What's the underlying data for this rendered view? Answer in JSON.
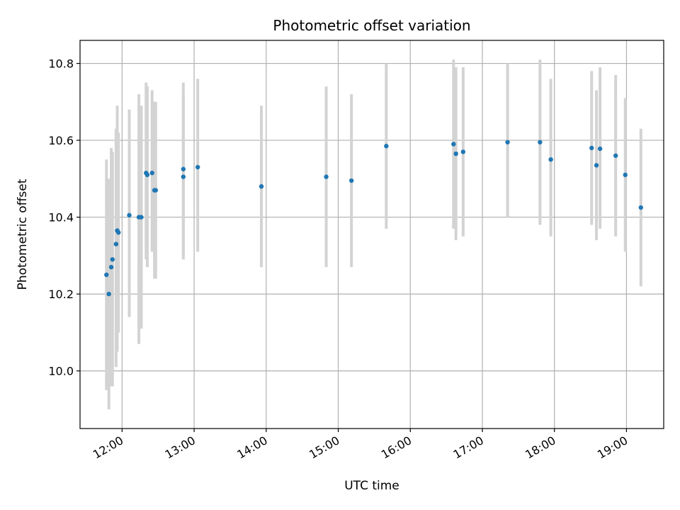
{
  "chart_data": {
    "type": "scatter",
    "title": "Photometric offset variation",
    "xlabel": "UTC time",
    "ylabel": "Photometric offset",
    "x_ticks": [
      "12:00",
      "13:00",
      "14:00",
      "15:00",
      "16:00",
      "17:00",
      "18:00",
      "19:00"
    ],
    "y_ticks": [
      "10.0",
      "10.2",
      "10.4",
      "10.6",
      "10.8"
    ],
    "xlim": [
      "11:25",
      "19:31"
    ],
    "ylim": [
      9.85,
      10.86
    ],
    "grid": true,
    "colors": {
      "point": "#1f77b4",
      "errorbar": "#d3d3d3",
      "grid": "#b0b0b0"
    },
    "points": [
      {
        "t": "11:47",
        "y": 10.25,
        "lo": 9.95,
        "hi": 10.55
      },
      {
        "t": "11:49",
        "y": 10.2,
        "lo": 9.9,
        "hi": 10.5
      },
      {
        "t": "11:51",
        "y": 10.27,
        "lo": 9.96,
        "hi": 10.58
      },
      {
        "t": "11:52",
        "y": 10.29,
        "lo": 9.96,
        "hi": 10.57
      },
      {
        "t": "11:55",
        "y": 10.33,
        "lo": 10.01,
        "hi": 10.63
      },
      {
        "t": "11:56",
        "y": 10.365,
        "lo": 10.05,
        "hi": 10.69
      },
      {
        "t": "11:57",
        "y": 10.36,
        "lo": 10.1,
        "hi": 10.62
      },
      {
        "t": "12:06",
        "y": 10.405,
        "lo": 10.14,
        "hi": 10.68
      },
      {
        "t": "12:14",
        "y": 10.4,
        "lo": 10.07,
        "hi": 10.72
      },
      {
        "t": "12:16",
        "y": 10.4,
        "lo": 10.11,
        "hi": 10.69
      },
      {
        "t": "12:20",
        "y": 10.515,
        "lo": 10.29,
        "hi": 10.75
      },
      {
        "t": "12:21",
        "y": 10.51,
        "lo": 10.27,
        "hi": 10.74
      },
      {
        "t": "12:25",
        "y": 10.515,
        "lo": 10.31,
        "hi": 10.73
      },
      {
        "t": "12:27",
        "y": 10.47,
        "lo": 10.24,
        "hi": 10.7
      },
      {
        "t": "12:28",
        "y": 10.47,
        "lo": 10.24,
        "hi": 10.7
      },
      {
        "t": "12:51",
        "y": 10.525,
        "lo": 10.3,
        "hi": 10.75
      },
      {
        "t": "12:51",
        "y": 10.505,
        "lo": 10.29,
        "hi": 10.72
      },
      {
        "t": "13:03",
        "y": 10.53,
        "lo": 10.31,
        "hi": 10.76
      },
      {
        "t": "13:56",
        "y": 10.48,
        "lo": 10.27,
        "hi": 10.69
      },
      {
        "t": "14:50",
        "y": 10.505,
        "lo": 10.27,
        "hi": 10.74
      },
      {
        "t": "15:11",
        "y": 10.495,
        "lo": 10.27,
        "hi": 10.72
      },
      {
        "t": "15:40",
        "y": 10.585,
        "lo": 10.37,
        "hi": 10.8
      },
      {
        "t": "16:36",
        "y": 10.59,
        "lo": 10.37,
        "hi": 10.81
      },
      {
        "t": "16:38",
        "y": 10.565,
        "lo": 10.34,
        "hi": 10.79
      },
      {
        "t": "16:44",
        "y": 10.57,
        "lo": 10.35,
        "hi": 10.79
      },
      {
        "t": "17:21",
        "y": 10.595,
        "lo": 10.4,
        "hi": 10.8
      },
      {
        "t": "17:48",
        "y": 10.595,
        "lo": 10.38,
        "hi": 10.81
      },
      {
        "t": "17:57",
        "y": 10.55,
        "lo": 10.35,
        "hi": 10.76
      },
      {
        "t": "18:31",
        "y": 10.58,
        "lo": 10.38,
        "hi": 10.78
      },
      {
        "t": "18:35",
        "y": 10.535,
        "lo": 10.34,
        "hi": 10.73
      },
      {
        "t": "18:38",
        "y": 10.578,
        "lo": 10.37,
        "hi": 10.79
      },
      {
        "t": "18:51",
        "y": 10.56,
        "lo": 10.35,
        "hi": 10.77
      },
      {
        "t": "18:59",
        "y": 10.51,
        "lo": 10.31,
        "hi": 10.71
      },
      {
        "t": "19:12",
        "y": 10.425,
        "lo": 10.22,
        "hi": 10.63
      }
    ]
  }
}
